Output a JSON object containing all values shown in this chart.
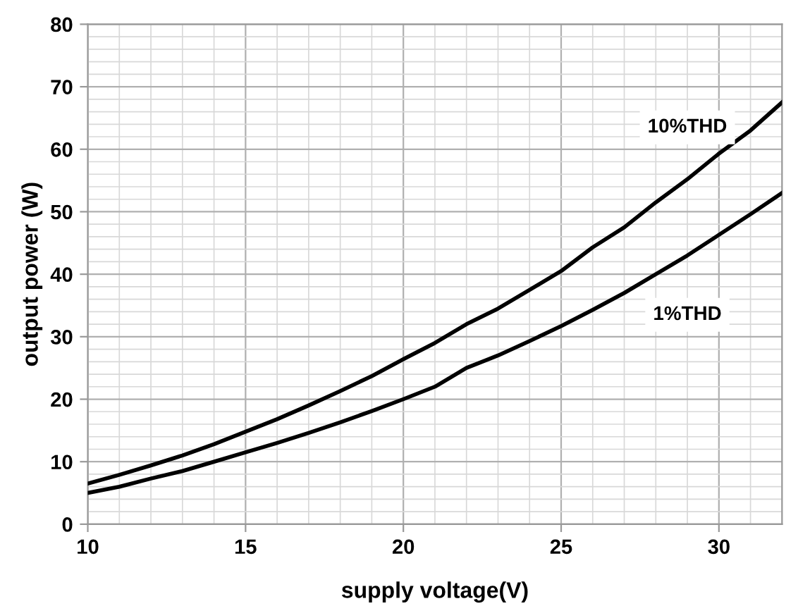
{
  "chart_data": {
    "type": "line",
    "xlabel": "supply voltage(V)",
    "ylabel": "output power (W)",
    "x": [
      10,
      11,
      12,
      13,
      14,
      15,
      16,
      17,
      18,
      19,
      20,
      21,
      22,
      23,
      24,
      25,
      26,
      27,
      28,
      29,
      30,
      31,
      32
    ],
    "series": [
      {
        "name": "10%THD",
        "color": "#000000",
        "values": [
          6.5,
          7.9,
          9.4,
          11.0,
          12.8,
          14.8,
          16.8,
          19.0,
          21.3,
          23.7,
          26.4,
          29.0,
          32.0,
          34.5,
          37.5,
          40.5,
          44.3,
          47.5,
          51.5,
          55.2,
          59.3,
          63.0,
          67.5
        ]
      },
      {
        "name": "1%THD",
        "color": "#000000",
        "values": [
          5.0,
          6.0,
          7.3,
          8.5,
          10.0,
          11.5,
          13.0,
          14.6,
          16.3,
          18.1,
          20.0,
          22.0,
          25.0,
          27.0,
          29.3,
          31.7,
          34.3,
          37.0,
          40.0,
          43.0,
          46.3,
          49.6,
          53.0
        ]
      }
    ],
    "xlim": [
      10,
      32
    ],
    "xticks": [
      10,
      15,
      20,
      25,
      30
    ],
    "ylim": [
      0,
      80
    ],
    "yticks": [
      0,
      10,
      20,
      30,
      40,
      50,
      60,
      70,
      80
    ],
    "grid": true,
    "legend": false,
    "marker": "none",
    "line_style": "solid"
  }
}
